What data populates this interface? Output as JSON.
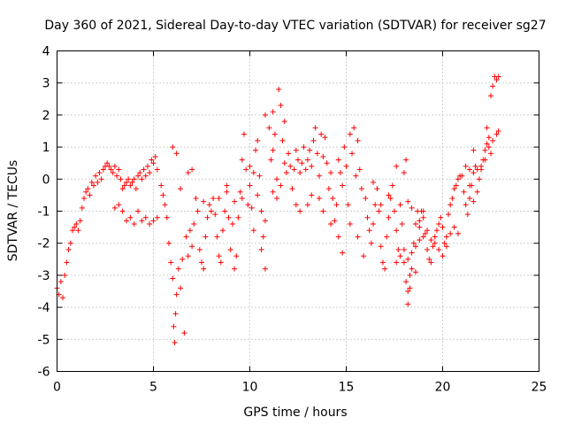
{
  "chart_data": {
    "type": "scatter",
    "title": "Day 360 of 2021, Sidereal Day-to-day VTEC variation (SDTVAR) for receiver sg27",
    "xlabel": "GPS time / hours",
    "ylabel": "SDTVAR / TECUs",
    "xlim": [
      0,
      25
    ],
    "ylim": [
      -6,
      4
    ],
    "xticks": [
      "0",
      "5",
      "10",
      "15",
      "20",
      "25"
    ],
    "yticks": [
      "-6",
      "-5",
      "-4",
      "-3",
      "-2",
      "-1",
      "0",
      "1",
      "2",
      "3",
      "4"
    ],
    "grid": true,
    "marker": "+",
    "color": "#ff0000",
    "series": [
      {
        "name": "SDTVAR",
        "points": [
          [
            0.0,
            -3.4
          ],
          [
            0.1,
            -3.6
          ],
          [
            0.2,
            -3.2
          ],
          [
            0.3,
            -3.7
          ],
          [
            0.4,
            -3.0
          ],
          [
            0.5,
            -2.6
          ],
          [
            0.6,
            -2.2
          ],
          [
            0.7,
            -2.0
          ],
          [
            0.8,
            -1.6
          ],
          [
            0.9,
            -1.5
          ],
          [
            1.0,
            -1.4
          ],
          [
            1.1,
            -1.6
          ],
          [
            1.2,
            -1.3
          ],
          [
            1.3,
            -0.9
          ],
          [
            1.4,
            -0.6
          ],
          [
            1.5,
            -0.4
          ],
          [
            1.6,
            -0.3
          ],
          [
            1.7,
            -0.5
          ],
          [
            1.8,
            -0.1
          ],
          [
            1.9,
            -0.2
          ],
          [
            2.0,
            0.1
          ],
          [
            2.1,
            -0.1
          ],
          [
            2.2,
            0.2
          ],
          [
            2.3,
            0.0
          ],
          [
            2.4,
            0.3
          ],
          [
            2.5,
            0.4
          ],
          [
            2.6,
            0.5
          ],
          [
            2.7,
            0.4
          ],
          [
            2.8,
            0.3
          ],
          [
            2.9,
            0.2
          ],
          [
            3.0,
            0.4
          ],
          [
            3.1,
            0.1
          ],
          [
            3.2,
            0.3
          ],
          [
            3.3,
            0.0
          ],
          [
            3.4,
            -0.3
          ],
          [
            3.5,
            -0.2
          ],
          [
            3.6,
            -0.1
          ],
          [
            3.7,
            0.0
          ],
          [
            3.8,
            -0.2
          ],
          [
            3.9,
            -0.1
          ],
          [
            4.0,
            0.0
          ],
          [
            4.1,
            -0.3
          ],
          [
            4.2,
            0.1
          ],
          [
            4.3,
            0.2
          ],
          [
            4.4,
            0.0
          ],
          [
            4.5,
            0.3
          ],
          [
            4.6,
            0.1
          ],
          [
            4.7,
            0.4
          ],
          [
            4.8,
            0.2
          ],
          [
            4.9,
            0.6
          ],
          [
            5.0,
            0.5
          ],
          [
            5.1,
            0.7
          ],
          [
            5.2,
            0.3
          ],
          [
            3.0,
            -0.9
          ],
          [
            3.2,
            -0.8
          ],
          [
            3.4,
            -1.0
          ],
          [
            3.6,
            -1.3
          ],
          [
            3.8,
            -1.2
          ],
          [
            4.0,
            -1.4
          ],
          [
            4.2,
            -1.0
          ],
          [
            4.4,
            -1.3
          ],
          [
            4.6,
            -1.2
          ],
          [
            4.8,
            -1.4
          ],
          [
            5.0,
            -1.3
          ],
          [
            5.2,
            -1.2
          ],
          [
            5.4,
            -0.2
          ],
          [
            5.5,
            -0.5
          ],
          [
            5.6,
            -0.8
          ],
          [
            5.7,
            -1.2
          ],
          [
            5.8,
            -2.0
          ],
          [
            5.9,
            -2.6
          ],
          [
            6.0,
            -3.1
          ],
          [
            6.05,
            -4.6
          ],
          [
            6.1,
            -5.1
          ],
          [
            6.15,
            -4.2
          ],
          [
            6.2,
            -3.6
          ],
          [
            6.3,
            -2.8
          ],
          [
            6.4,
            -3.4
          ],
          [
            6.5,
            -2.5
          ],
          [
            6.6,
            -4.8
          ],
          [
            6.7,
            -1.8
          ],
          [
            6.8,
            -2.4
          ],
          [
            6.9,
            -1.6
          ],
          [
            7.0,
            -2.1
          ],
          [
            7.1,
            -1.4
          ],
          [
            7.2,
            -0.6
          ],
          [
            7.3,
            -1.0
          ],
          [
            7.4,
            -2.2
          ],
          [
            7.5,
            -2.6
          ],
          [
            7.6,
            -2.8
          ],
          [
            7.7,
            -1.8
          ],
          [
            7.8,
            -1.2
          ],
          [
            7.9,
            -0.8
          ],
          [
            8.0,
            -1.0
          ],
          [
            8.1,
            -0.6
          ],
          [
            8.2,
            -1.1
          ],
          [
            8.3,
            -1.8
          ],
          [
            8.4,
            -2.4
          ],
          [
            8.5,
            -2.6
          ],
          [
            8.6,
            -1.6
          ],
          [
            8.7,
            -1.0
          ],
          [
            8.8,
            -0.2
          ],
          [
            8.9,
            -1.2
          ],
          [
            9.0,
            -2.2
          ],
          [
            9.1,
            -1.4
          ],
          [
            9.2,
            -2.8
          ],
          [
            9.3,
            -2.4
          ],
          [
            9.4,
            -1.2
          ],
          [
            9.5,
            -0.4
          ],
          [
            9.6,
            0.6
          ],
          [
            9.7,
            1.4
          ],
          [
            9.8,
            0.3
          ],
          [
            9.9,
            -0.8
          ],
          [
            10.0,
            -0.2
          ],
          [
            10.1,
            -0.9
          ],
          [
            10.2,
            0.2
          ],
          [
            10.3,
            0.9
          ],
          [
            10.4,
            1.2
          ],
          [
            10.5,
            0.1
          ],
          [
            10.6,
            -1.0
          ],
          [
            10.7,
            -1.8
          ],
          [
            10.8,
            -1.3
          ],
          [
            6.0,
            1.0
          ],
          [
            6.2,
            0.8
          ],
          [
            6.4,
            -0.3
          ],
          [
            6.8,
            0.2
          ],
          [
            7.0,
            0.3
          ],
          [
            7.6,
            -0.7
          ],
          [
            8.4,
            -0.6
          ],
          [
            8.8,
            -0.4
          ],
          [
            9.2,
            -0.7
          ],
          [
            9.6,
            -0.6
          ],
          [
            10.0,
            0.4
          ],
          [
            10.4,
            -0.5
          ],
          [
            10.6,
            -2.2
          ],
          [
            10.8,
            -2.8
          ],
          [
            11.0,
            1.6
          ],
          [
            11.1,
            0.6
          ],
          [
            11.2,
            0.9
          ],
          [
            11.3,
            1.4
          ],
          [
            11.4,
            0.0
          ],
          [
            11.5,
            2.8
          ],
          [
            11.6,
            2.3
          ],
          [
            11.7,
            1.2
          ],
          [
            11.8,
            0.5
          ],
          [
            11.9,
            0.2
          ],
          [
            12.0,
            0.8
          ],
          [
            12.1,
            0.4
          ],
          [
            12.2,
            -0.3
          ],
          [
            12.3,
            0.3
          ],
          [
            12.4,
            0.9
          ],
          [
            12.5,
            0.6
          ],
          [
            12.6,
            0.2
          ],
          [
            12.7,
            0.5
          ],
          [
            12.8,
            1.0
          ],
          [
            12.9,
            0.3
          ],
          [
            13.0,
            0.6
          ],
          [
            13.1,
            0.9
          ],
          [
            13.2,
            0.4
          ],
          [
            13.3,
            1.2
          ],
          [
            13.4,
            1.6
          ],
          [
            13.5,
            0.8
          ],
          [
            13.6,
            0.1
          ],
          [
            13.7,
            1.4
          ],
          [
            13.8,
            0.7
          ],
          [
            13.9,
            1.3
          ],
          [
            14.0,
            0.5
          ],
          [
            14.1,
            -0.3
          ],
          [
            14.2,
            0.2
          ],
          [
            14.3,
            -0.6
          ],
          [
            14.4,
            -1.3
          ],
          [
            14.5,
            -0.8
          ],
          [
            14.6,
            0.6
          ],
          [
            14.7,
            0.2
          ],
          [
            14.8,
            -0.2
          ],
          [
            14.9,
            1.0
          ],
          [
            15.0,
            0.4
          ],
          [
            15.1,
            -0.8
          ],
          [
            15.2,
            1.4
          ],
          [
            15.3,
            0.8
          ],
          [
            15.4,
            1.6
          ],
          [
            15.5,
            0.1
          ],
          [
            15.6,
            1.2
          ],
          [
            15.7,
            0.3
          ],
          [
            15.8,
            -0.3
          ],
          [
            11.2,
            -0.4
          ],
          [
            11.4,
            -0.6
          ],
          [
            11.6,
            -0.2
          ],
          [
            12.4,
            -0.8
          ],
          [
            12.6,
            -1.0
          ],
          [
            13.0,
            -0.8
          ],
          [
            13.2,
            -0.5
          ],
          [
            13.6,
            -0.6
          ],
          [
            13.8,
            -1.0
          ],
          [
            14.2,
            -1.4
          ],
          [
            14.6,
            -1.8
          ],
          [
            14.8,
            -2.3
          ],
          [
            15.2,
            -1.4
          ],
          [
            15.6,
            -1.8
          ],
          [
            15.9,
            -2.4
          ],
          [
            11.2,
            2.1
          ],
          [
            11.8,
            1.8
          ],
          [
            10.8,
            2.0
          ],
          [
            10.2,
            -1.6
          ],
          [
            16.0,
            -0.6
          ],
          [
            16.1,
            -1.2
          ],
          [
            16.2,
            -1.6
          ],
          [
            16.3,
            -2.0
          ],
          [
            16.4,
            -1.4
          ],
          [
            16.5,
            -0.8
          ],
          [
            16.6,
            -0.3
          ],
          [
            16.7,
            -1.0
          ],
          [
            16.8,
            -2.1
          ],
          [
            16.9,
            -2.6
          ],
          [
            17.0,
            -2.8
          ],
          [
            17.1,
            -1.8
          ],
          [
            17.2,
            -1.2
          ],
          [
            17.3,
            -0.6
          ],
          [
            17.4,
            -0.2
          ],
          [
            17.5,
            -1.0
          ],
          [
            17.6,
            -1.6
          ],
          [
            17.7,
            -2.2
          ],
          [
            17.8,
            -0.8
          ],
          [
            17.9,
            -1.4
          ],
          [
            18.0,
            -2.6
          ],
          [
            18.1,
            -3.2
          ],
          [
            18.2,
            -3.9
          ],
          [
            18.3,
            -3.4
          ],
          [
            18.4,
            -2.8
          ],
          [
            18.5,
            -2.0
          ],
          [
            18.6,
            -1.4
          ],
          [
            18.7,
            -1.0
          ],
          [
            18.8,
            -1.3
          ],
          [
            18.9,
            -1.0
          ],
          [
            19.0,
            -1.2
          ],
          [
            19.1,
            -1.7
          ],
          [
            19.2,
            -2.2
          ],
          [
            19.3,
            -2.5
          ],
          [
            19.4,
            -2.6
          ],
          [
            19.5,
            -2.1
          ],
          [
            19.6,
            -1.8
          ],
          [
            19.7,
            -1.6
          ],
          [
            19.8,
            -1.4
          ],
          [
            19.9,
            -1.2
          ],
          [
            20.0,
            -1.5
          ],
          [
            20.1,
            -2.0
          ],
          [
            20.2,
            -1.8
          ],
          [
            20.3,
            -1.1
          ],
          [
            20.4,
            -0.8
          ],
          [
            20.5,
            -0.6
          ],
          [
            20.6,
            -0.3
          ],
          [
            20.7,
            -0.2
          ],
          [
            20.8,
            0.0
          ],
          [
            20.9,
            0.1
          ],
          [
            17.6,
            -2.6
          ],
          [
            17.8,
            -2.4
          ],
          [
            18.0,
            -2.2
          ],
          [
            18.2,
            -2.5
          ],
          [
            18.4,
            -2.3
          ],
          [
            18.6,
            -2.1
          ],
          [
            18.8,
            -1.9
          ],
          [
            19.0,
            -1.8
          ],
          [
            19.2,
            -1.6
          ],
          [
            19.4,
            -1.9
          ],
          [
            19.6,
            -2.0
          ],
          [
            19.8,
            -2.2
          ],
          [
            20.0,
            -2.4
          ],
          [
            20.2,
            -2.1
          ],
          [
            20.4,
            -1.7
          ],
          [
            20.6,
            -1.5
          ],
          [
            20.8,
            -1.7
          ],
          [
            16.4,
            -0.1
          ],
          [
            16.8,
            -0.8
          ],
          [
            17.2,
            -0.5
          ],
          [
            17.6,
            0.4
          ],
          [
            18.0,
            0.2
          ],
          [
            18.2,
            -0.7
          ],
          [
            18.4,
            -0.9
          ],
          [
            18.6,
            -2.9
          ],
          [
            18.8,
            -1.5
          ],
          [
            19.0,
            -1.0
          ],
          [
            18.1,
            0.6
          ],
          [
            18.3,
            -3.0
          ],
          [
            18.2,
            -3.5
          ],
          [
            21.0,
            0.1
          ],
          [
            21.1,
            -0.4
          ],
          [
            21.2,
            -0.8
          ],
          [
            21.3,
            -1.1
          ],
          [
            21.4,
            -0.6
          ],
          [
            21.5,
            -0.2
          ],
          [
            21.6,
            0.2
          ],
          [
            21.7,
            0.4
          ],
          [
            21.8,
            0.3
          ],
          [
            21.9,
            0.0
          ],
          [
            22.0,
            0.3
          ],
          [
            22.1,
            0.6
          ],
          [
            22.2,
            0.9
          ],
          [
            22.3,
            1.1
          ],
          [
            22.4,
            1.3
          ],
          [
            22.5,
            2.6
          ],
          [
            22.6,
            2.9
          ],
          [
            22.7,
            3.2
          ],
          [
            22.8,
            3.1
          ],
          [
            22.9,
            3.2
          ],
          [
            21.2,
            0.4
          ],
          [
            21.4,
            -0.2
          ],
          [
            21.6,
            -0.7
          ],
          [
            21.8,
            -0.4
          ],
          [
            22.0,
            0.4
          ],
          [
            22.2,
            0.6
          ],
          [
            22.4,
            1.0
          ],
          [
            22.6,
            1.2
          ],
          [
            22.8,
            1.4
          ],
          [
            22.9,
            1.5
          ],
          [
            22.3,
            1.6
          ],
          [
            22.5,
            0.8
          ],
          [
            21.4,
            0.3
          ],
          [
            21.6,
            0.9
          ]
        ]
      }
    ]
  }
}
